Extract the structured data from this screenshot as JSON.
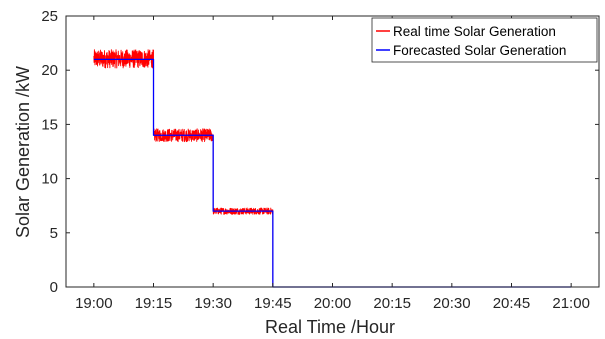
{
  "chart_data": {
    "type": "line",
    "title": "",
    "xlabel": "Real Time /Hour",
    "ylabel": "Solar Generation /kW",
    "x_ticks": [
      "19:00",
      "19:15",
      "19:30",
      "19:45",
      "20:00",
      "20:15",
      "20:30",
      "20:45",
      "21:00"
    ],
    "x_tick_minutes": [
      0,
      15,
      30,
      45,
      60,
      75,
      90,
      105,
      120
    ],
    "xlim_minutes": [
      -7,
      127
    ],
    "y_ticks": [
      0,
      5,
      10,
      15,
      20,
      25
    ],
    "ylim": [
      0,
      25
    ],
    "grid": false,
    "legend_position": "top-right",
    "series": [
      {
        "name": "Real time Solar Generation",
        "color": "#ff0000",
        "noise": true,
        "segments": [
          {
            "x_start": "19:00",
            "x_end": "19:15",
            "value": 21,
            "range": [
              20.2,
              21.9
            ]
          },
          {
            "x_start": "19:15",
            "x_end": "19:30",
            "value": 14,
            "range": [
              13.4,
              14.6
            ]
          },
          {
            "x_start": "19:30",
            "x_end": "19:45",
            "value": 7,
            "range": [
              6.7,
              7.3
            ]
          },
          {
            "x_start": "19:45",
            "x_end": "21:00",
            "value": 0
          }
        ]
      },
      {
        "name": "Forecasted Solar Generation",
        "color": "#0000ff",
        "noise": false,
        "segments": [
          {
            "x_start": "19:00",
            "x_end": "19:15",
            "value": 21
          },
          {
            "x_start": "19:15",
            "x_end": "19:30",
            "value": 14
          },
          {
            "x_start": "19:30",
            "x_end": "19:45",
            "value": 7
          },
          {
            "x_start": "19:45",
            "x_end": "21:00",
            "value": 0
          }
        ]
      }
    ]
  }
}
